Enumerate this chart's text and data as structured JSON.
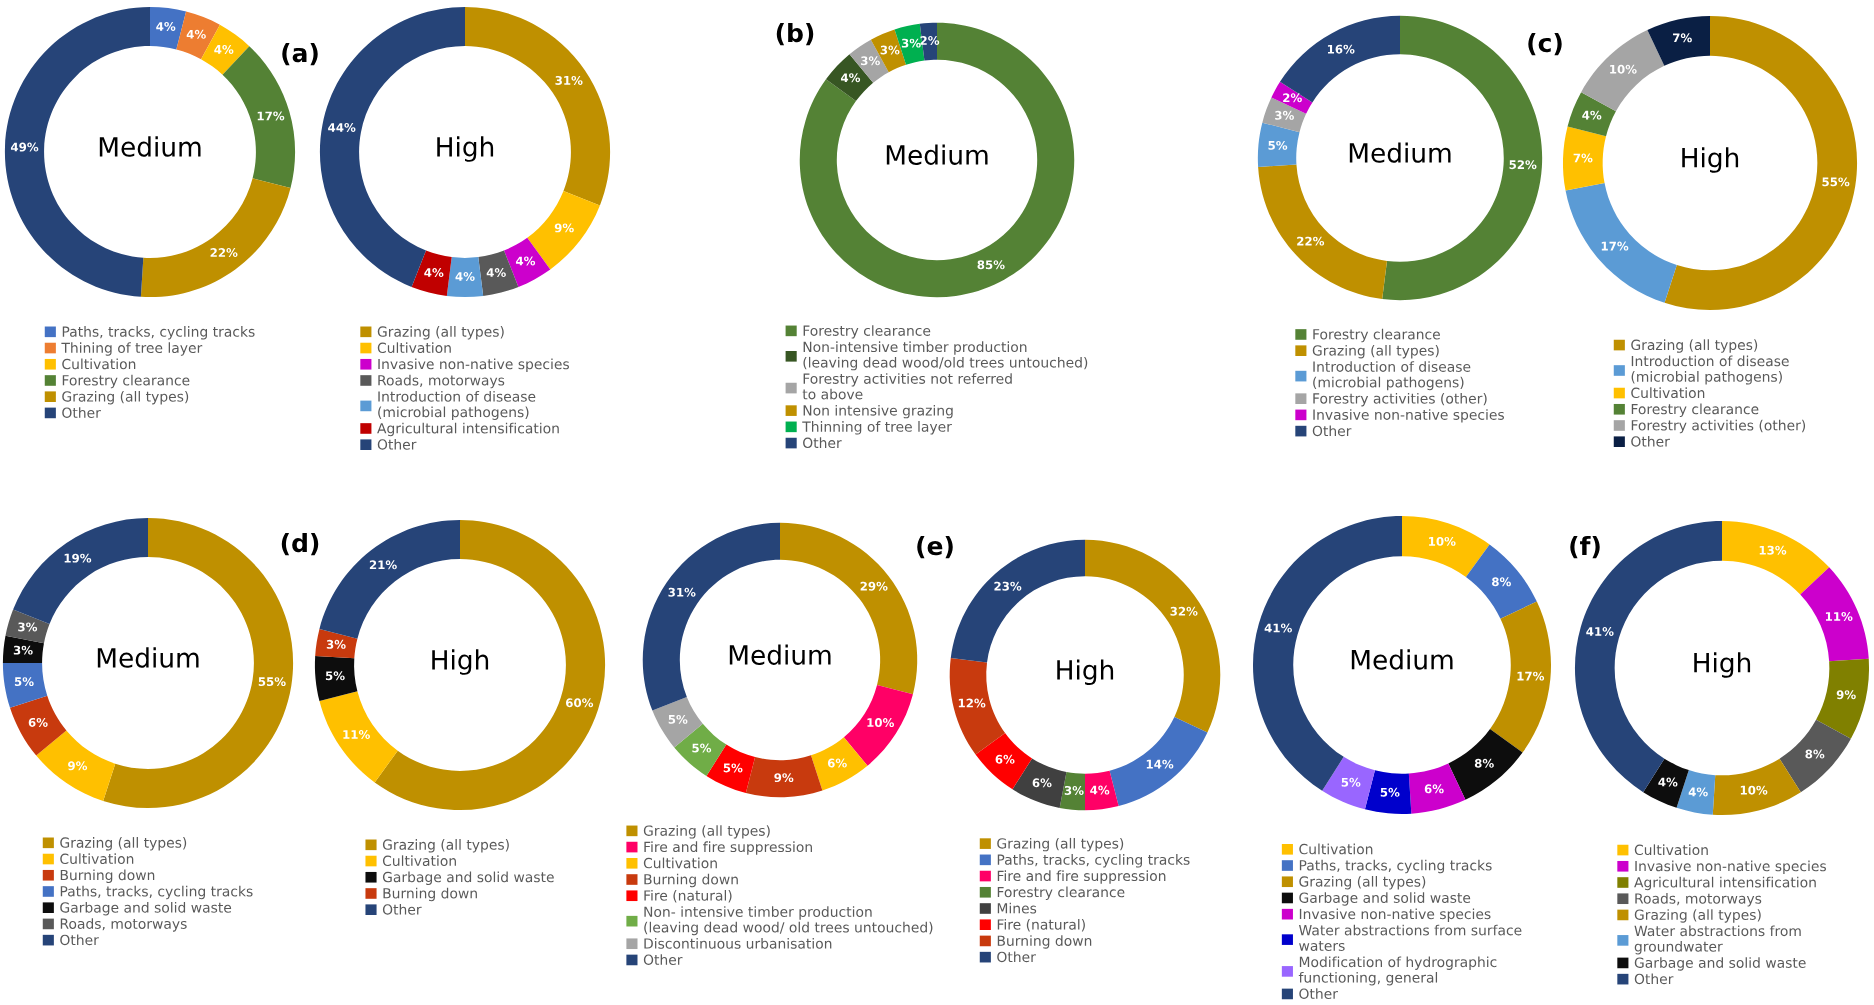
{
  "chart_data": [
    {
      "type": "donut",
      "title": "Medium",
      "annotations": [
        "(a)"
      ],
      "legend": "bottom",
      "categories": [
        "Paths, tracks, cycling tracks",
        "Thining of tree layer",
        "Cultivation",
        "Forestry clearance",
        "Grazing (all types)",
        "Other"
      ],
      "values": [
        4,
        4,
        4,
        17,
        22,
        49
      ],
      "value_labels": [
        "4%",
        "4%",
        "4%",
        "17%",
        "22%",
        "49%"
      ],
      "colors": [
        "#4472c4",
        "#ed7d31",
        "#ffc000",
        "#548235",
        "#bf9000",
        "#264478"
      ]
    },
    {
      "type": "donut",
      "title": "High",
      "legend": "bottom",
      "categories": [
        "Grazing (all types)",
        "Cultivation",
        "Invasive non-native species",
        "Roads, motorways",
        "Introduction of disease (microbial pathogens)",
        "Agricultural intensification",
        "Other"
      ],
      "values": [
        31,
        9,
        4,
        4,
        4,
        4,
        44
      ],
      "value_labels": [
        "31%",
        "9%",
        "4%",
        "4%",
        "4%",
        "4%",
        "44%"
      ],
      "colors": [
        "#bf9000",
        "#ffc000",
        "#cc00cc",
        "#595959",
        "#5b9bd5",
        "#c00000",
        "#264478"
      ]
    },
    {
      "type": "donut",
      "title": "Medium",
      "annotations": [
        "(b)"
      ],
      "legend": "bottom",
      "categories": [
        "Forestry clearance",
        "Non-intensive timber production (leaving dead wood/old trees untouched)",
        "Forestry activities not referred to above",
        "Non intensive grazing",
        "Thinning of tree layer",
        "Other"
      ],
      "values": [
        85,
        4,
        3,
        3,
        3,
        2
      ],
      "value_labels": [
        "85%",
        "4%",
        "3%",
        "3%",
        "3%",
        "2%"
      ],
      "colors": [
        "#548235",
        "#375623",
        "#a5a5a5",
        "#bf9000",
        "#00b050",
        "#264478"
      ]
    },
    {
      "type": "donut",
      "title": "Medium",
      "annotations": [
        "(c)"
      ],
      "legend": "bottom",
      "categories": [
        "Forestry clearance",
        "Grazing (all types)",
        "Introduction of disease (microbial pathogens)",
        "Forestry activities (other)",
        "Invasive non-native species",
        "Other"
      ],
      "values": [
        52,
        22,
        5,
        3,
        2,
        16
      ],
      "value_labels": [
        "52%",
        "22%",
        "5%",
        "3%",
        "2%",
        "16%"
      ],
      "colors": [
        "#548235",
        "#bf9000",
        "#5b9bd5",
        "#a5a5a5",
        "#cc00cc",
        "#264478"
      ]
    },
    {
      "type": "donut",
      "title": "High",
      "legend": "bottom",
      "categories": [
        "Grazing (all types)",
        "Introduction of disease (microbial pathogens)",
        "Cultivation",
        "Forestry clearance",
        "Forestry activities (other)",
        "Other"
      ],
      "values": [
        55,
        17,
        7,
        4,
        10,
        7
      ],
      "value_labels": [
        "55%",
        "17%",
        "7%",
        "4%",
        "10%",
        "7%"
      ],
      "colors": [
        "#bf9000",
        "#5b9bd5",
        "#ffc000",
        "#548235",
        "#a5a5a5",
        "#0a1f44"
      ]
    },
    {
      "type": "donut",
      "title": "Medium",
      "annotations": [
        "(d)"
      ],
      "legend": "bottom",
      "categories": [
        "Grazing (all types)",
        "Cultivation",
        "Burning down",
        "Paths, tracks, cycling tracks",
        "Garbage and solid waste",
        "Roads, motorways",
        "Other"
      ],
      "values": [
        55,
        9,
        6,
        5,
        3,
        3,
        19
      ],
      "value_labels": [
        "55%",
        "9%",
        "6%",
        "5%",
        "3%",
        "3%",
        "19%"
      ],
      "colors": [
        "#bf9000",
        "#ffc000",
        "#c83a0e",
        "#4472c4",
        "#0d0d0d",
        "#595959",
        "#264478"
      ]
    },
    {
      "type": "donut",
      "title": "High",
      "legend": "bottom",
      "categories": [
        "Grazing (all types)",
        "Cultivation",
        "Garbage and solid waste",
        "Burning down",
        "Other"
      ],
      "values": [
        60,
        11,
        5,
        3,
        21
      ],
      "value_labels": [
        "60%",
        "11%",
        "5%",
        "3%",
        "21%"
      ],
      "colors": [
        "#bf9000",
        "#ffc000",
        "#0d0d0d",
        "#c83a0e",
        "#264478"
      ]
    },
    {
      "type": "donut",
      "title": "Medium",
      "annotations": [
        "(e)"
      ],
      "legend": "bottom",
      "categories": [
        "Grazing (all types)",
        "Fire and fire suppression",
        "Cultivation",
        "Burning down",
        "Fire (natural)",
        "Non- intensive timber production (leaving dead wood/ old trees untouched)",
        "Discontinuous urbanisation",
        "Other"
      ],
      "values": [
        29,
        10,
        6,
        9,
        5,
        5,
        5,
        31
      ],
      "value_labels": [
        "29%",
        "10%",
        "6%",
        "9%",
        "5%",
        "5%",
        "5%",
        "31%"
      ],
      "colors": [
        "#bf9000",
        "#ff0066",
        "#ffc000",
        "#c83a0e",
        "#ff0000",
        "#70ad47",
        "#a5a5a5",
        "#264478"
      ]
    },
    {
      "type": "donut",
      "title": "High",
      "legend": "bottom",
      "categories": [
        "Grazing (all types)",
        "Paths, tracks, cycling tracks",
        "Fire and fire suppression",
        "Forestry clearance",
        "Mines",
        "Fire (natural)",
        "Burning down",
        "Other"
      ],
      "values": [
        32,
        14,
        4,
        3,
        6,
        6,
        12,
        23
      ],
      "value_labels": [
        "32%",
        "14%",
        "4%",
        "3%",
        "6%",
        "6%",
        "12%",
        "23%"
      ],
      "colors": [
        "#bf9000",
        "#4472c4",
        "#ff0066",
        "#548235",
        "#404040",
        "#ff0000",
        "#c83a0e",
        "#264478"
      ]
    },
    {
      "type": "donut",
      "title": "Medium",
      "annotations": [
        "(f)"
      ],
      "legend": "bottom",
      "categories": [
        "Cultivation",
        "Paths, tracks, cycling tracks",
        "Grazing (all types)",
        "Garbage and solid waste",
        "Invasive non-native species",
        "Water abstractions from surface waters",
        "Modification of hydrographic functioning, general",
        "Other"
      ],
      "values": [
        10,
        8,
        17,
        8,
        6,
        5,
        5,
        41
      ],
      "value_labels": [
        "10%",
        "8%",
        "17%",
        "8%",
        "6%",
        "5%",
        "5%",
        "41%"
      ],
      "colors": [
        "#ffc000",
        "#4472c4",
        "#bf9000",
        "#0d0d0d",
        "#cc00cc",
        "#0000cc",
        "#9966ff",
        "#264478"
      ]
    },
    {
      "type": "donut",
      "title": "High",
      "legend": "bottom",
      "categories": [
        "Cultivation",
        "Invasive non-native species",
        "Agricultural intensification",
        "Roads, motorways",
        "Grazing (all types)",
        "Water abstractions from groundwater",
        "Garbage and solid waste",
        "Other"
      ],
      "values": [
        13,
        11,
        9,
        8,
        10,
        4,
        4,
        41
      ],
      "value_labels": [
        "13%",
        "11%",
        "9%",
        "8%",
        "10%",
        "4%",
        "4%",
        "41%"
      ],
      "colors": [
        "#ffc000",
        "#cc00cc",
        "#808000",
        "#595959",
        "#bf9000",
        "#5b9bd5",
        "#0d0d0d",
        "#264478"
      ]
    }
  ]
}
